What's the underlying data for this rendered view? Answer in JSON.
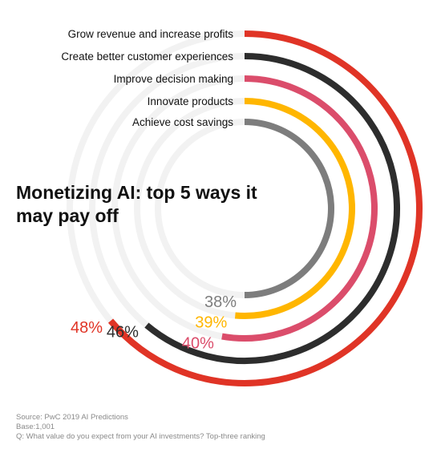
{
  "title": "Monetizing AI: top 5 ways it may pay off",
  "source": {
    "line1": "Source: PwC 2019 AI Predictions",
    "line2": "Base:1,001",
    "line3": "Q: What value do you expect from your AI investments? Top-three ranking"
  },
  "colors": {
    "track": "#f2f2f2",
    "red": "#e03426",
    "black": "#2d2d2d",
    "pink": "#db4d6b",
    "yellow": "#ffb600",
    "gray": "#7d7d7d"
  },
  "chart_data": {
    "type": "radial bar",
    "title": "Monetizing AI: top 5 ways it may pay off",
    "unit": "%",
    "series": [
      {
        "category": "Grow revenue and increase profits",
        "value": 48,
        "label": "48%",
        "color": "#e03426"
      },
      {
        "category": "Create better customer experiences",
        "value": 46,
        "label": "46%",
        "color": "#2d2d2d"
      },
      {
        "category": "Improve decision making",
        "value": 40,
        "label": "40%",
        "color": "#db4d6b"
      },
      {
        "category": "Innovate products",
        "value": 39,
        "label": "39%",
        "color": "#ffb600"
      },
      {
        "category": "Achieve cost savings",
        "value": 38,
        "label": "38%",
        "color": "#7d7d7d"
      }
    ]
  }
}
